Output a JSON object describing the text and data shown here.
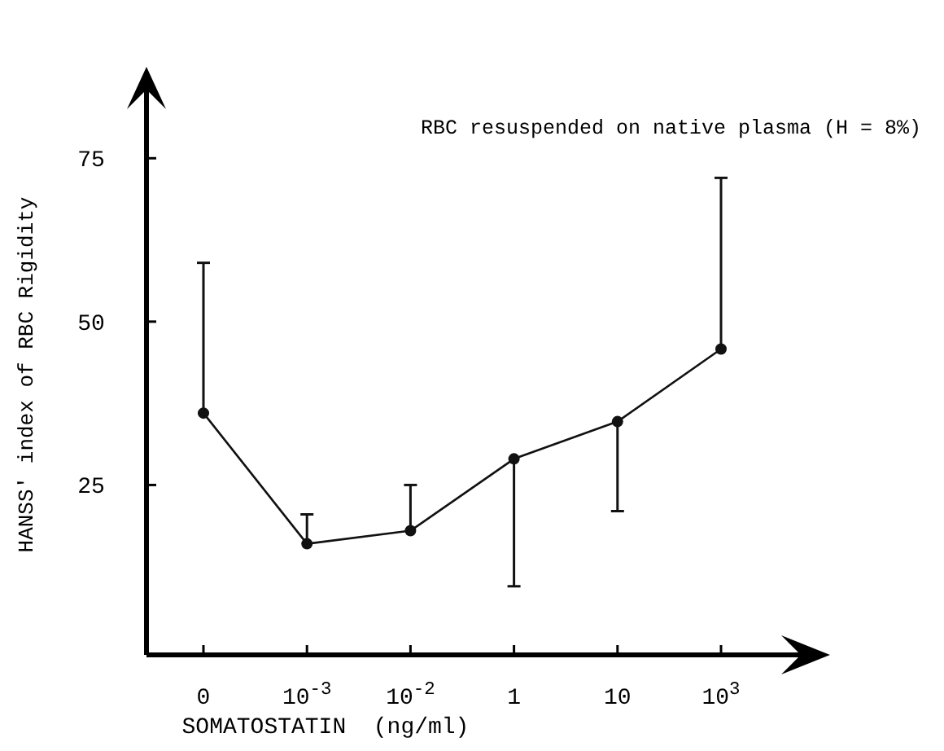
{
  "chart_data": {
    "type": "line",
    "xlabel": "SOMATOSTATIN  (ng/ml)",
    "ylabel": "HANSS' index of RBC Rigidity",
    "annotations": [
      "RBC  resuspended on native plasma (H = 8%)"
    ],
    "categories": [
      "0",
      "10$^{-3}$",
      "10$^{-2}$",
      "1",
      "10",
      "10$^{3}$"
    ],
    "values": [
      36,
      16,
      18,
      29,
      34.7,
      45.8
    ],
    "errors": [
      [
        36,
        59
      ],
      [
        16,
        20.5
      ],
      [
        18,
        25
      ],
      [
        9.5,
        29
      ],
      [
        21,
        34.7
      ],
      [
        45.8,
        72
      ]
    ],
    "color": "#111111",
    "marker": "circle",
    "line_style": "solid",
    "ylim": [
      -1,
      88
    ],
    "yticks": [
      25,
      50,
      75
    ],
    "grid": false
  }
}
